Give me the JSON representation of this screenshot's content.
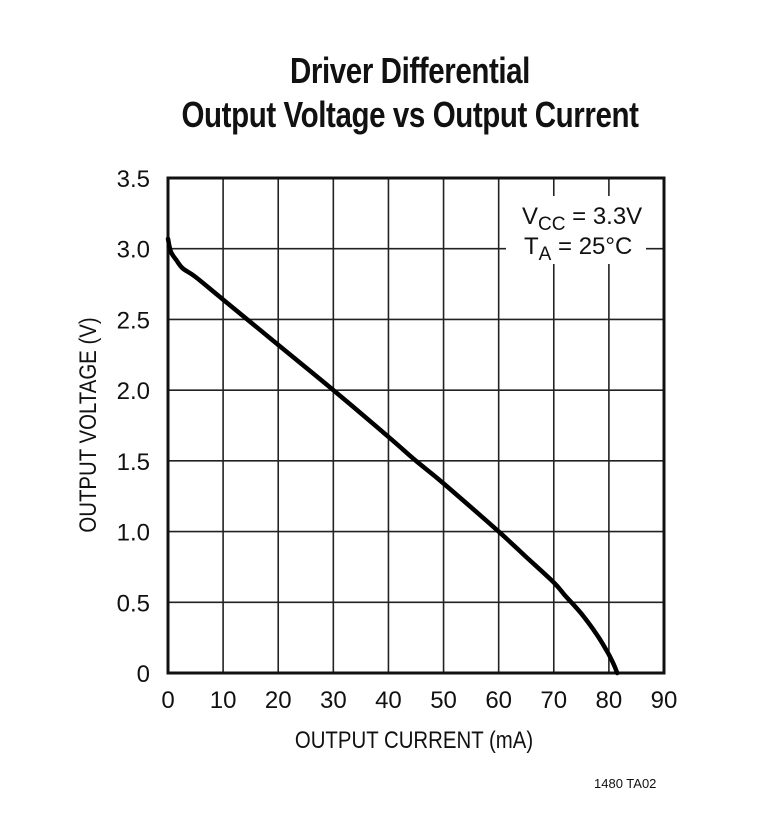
{
  "title_line1": "Driver Differential",
  "title_line2": "Output Voltage vs Output Current",
  "figure_id": "1480 TA02",
  "annotation": {
    "vcc": "VCC = 3.3V",
    "ta": "TA = 25°C"
  },
  "chart_data": {
    "type": "line",
    "title": "Driver Differential Output Voltage vs Output Current",
    "xlabel": "OUTPUT CURRENT (mA)",
    "ylabel": "OUTPUT VOLTAGE (V)",
    "xlim": [
      0,
      90
    ],
    "ylim": [
      0,
      3.5
    ],
    "x_ticks": [
      "0",
      "10",
      "20",
      "30",
      "40",
      "50",
      "60",
      "70",
      "80",
      "90"
    ],
    "y_ticks": [
      "0",
      "0.5",
      "1.0",
      "1.5",
      "2.0",
      "2.5",
      "3.0",
      "3.5"
    ],
    "grid": true,
    "annotations": [
      "VCC = 3.3V",
      "TA = 25°C"
    ],
    "series": [
      {
        "name": "VCC = 3.3V, TA = 25°C",
        "x": [
          0,
          0.5,
          1.5,
          2.7,
          5,
          10,
          20,
          30,
          40,
          45,
          50,
          60,
          65,
          70,
          72,
          75,
          78,
          80,
          81,
          81.5
        ],
        "values": [
          3.07,
          2.98,
          2.92,
          2.86,
          2.8,
          2.64,
          2.32,
          2.0,
          1.67,
          1.5,
          1.34,
          1.0,
          0.82,
          0.64,
          0.55,
          0.42,
          0.26,
          0.13,
          0.05,
          0.0
        ]
      }
    ]
  }
}
